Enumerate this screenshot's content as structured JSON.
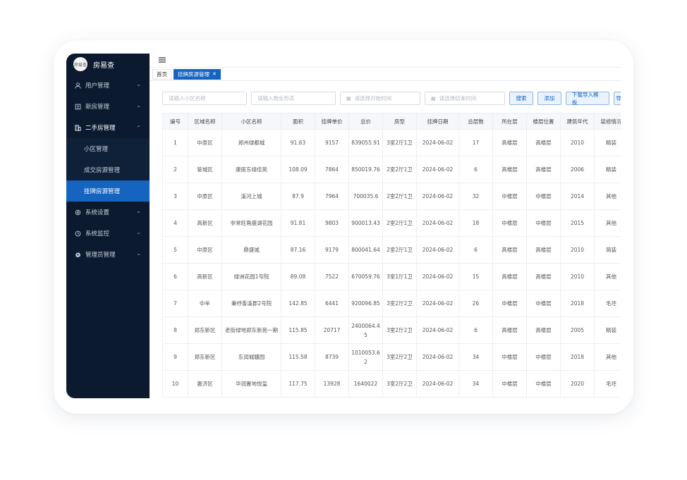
{
  "brand": {
    "logo_text": "房易查",
    "title": "房易查"
  },
  "sidebar": {
    "items": [
      {
        "icon": "user-icon",
        "label": "用户管理"
      },
      {
        "icon": "building-icon",
        "label": "新房管理"
      },
      {
        "icon": "house-icon",
        "label": "二手房管理"
      },
      {
        "icon": "gear-icon",
        "label": "系统设置"
      },
      {
        "icon": "monitor-icon",
        "label": "系统监控"
      },
      {
        "icon": "cog-icon",
        "label": "管理员管理"
      }
    ],
    "submenu": [
      {
        "label": "小区管理"
      },
      {
        "label": "成交房源管理"
      },
      {
        "label": "挂牌房源管理"
      }
    ]
  },
  "tabs": [
    {
      "label": "首页"
    },
    {
      "label": "挂牌房源管理"
    }
  ],
  "filters": {
    "community_placeholder": "请输入小区名称",
    "property_placeholder": "请输入物业形态",
    "start_placeholder": "请选择开始时间",
    "end_placeholder": "请选择结束时间",
    "search_label": "搜索",
    "add_label": "添加",
    "template_label": "下载导入模板",
    "import_label": "导"
  },
  "table": {
    "headers": [
      "编号",
      "区域名称",
      "小区名称",
      "面积",
      "挂牌单价",
      "总价",
      "房型",
      "挂牌日期",
      "总层数",
      "所在层",
      "楼层位置",
      "建筑年代",
      "装修情况"
    ],
    "rows": [
      [
        "1",
        "中原区",
        "郑州绿都城",
        "91.63",
        "9157",
        "839055.91",
        "3室2厅1卫",
        "2024-06-02",
        "17",
        "高楼层",
        "高楼层",
        "2010",
        "精装"
      ],
      [
        "2",
        "管城区",
        "康居东靖佳苑",
        "108.09",
        "7864",
        "850019.76",
        "2室2厅1卫",
        "2024-06-02",
        "6",
        "高楼层",
        "高楼层",
        "2006",
        "精装"
      ],
      [
        "3",
        "中原区",
        "溪河上城",
        "87.9",
        "7964",
        "700035.6",
        "2室2厅1卫",
        "2024-06-02",
        "32",
        "中楼层",
        "中楼层",
        "2014",
        "其他"
      ],
      [
        "4",
        "高新区",
        "非常旺角盛湖花园",
        "91.81",
        "9803",
        "900013.43",
        "2室2厅1卫",
        "2024-06-02",
        "18",
        "中楼层",
        "中楼层",
        "2015",
        "其他"
      ],
      [
        "5",
        "中原区",
        "鼎盛城",
        "87.16",
        "9179",
        "800041.64",
        "2室2厅1卫",
        "2024-06-02",
        "6",
        "高楼层",
        "高楼层",
        "2010",
        "简装"
      ],
      [
        "6",
        "高新区",
        "绿洲花园1号院",
        "89.08",
        "7522",
        "670059.76",
        "3室1厅1卫",
        "2024-06-02",
        "15",
        "高楼层",
        "高楼层",
        "2010",
        "其他"
      ],
      [
        "7",
        "中牟",
        "秉杼香溪郡2号院",
        "142.85",
        "6441",
        "920096.85",
        "3室2厅2卫",
        "2024-06-02",
        "26",
        "中楼层",
        "中楼层",
        "2018",
        "毛坯"
      ],
      [
        "8",
        "郑东新区",
        "老街绿地郑东新苑一期",
        "115.85",
        "20717",
        "2400064.45",
        "3室2厅2卫",
        "2024-06-02",
        "6",
        "高楼层",
        "高楼层",
        "2005",
        "精装"
      ],
      [
        "9",
        "郑东新区",
        "东润城疆园",
        "115.58",
        "8739",
        "1010053.62",
        "3室2厅2卫",
        "2024-06-02",
        "34",
        "中楼层",
        "中楼层",
        "2018",
        "其他"
      ],
      [
        "10",
        "惠济区",
        "华润置地悦玺",
        "117.75",
        "13928",
        "1640022",
        "3室2厅2卫",
        "2024-06-02",
        "34",
        "中楼层",
        "中楼层",
        "2020",
        "毛坯"
      ]
    ]
  }
}
